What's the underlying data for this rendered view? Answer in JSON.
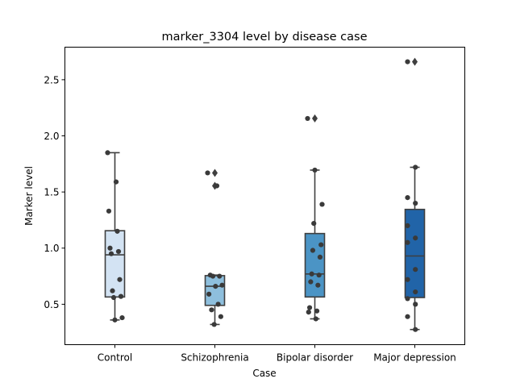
{
  "chart_data": {
    "type": "box",
    "title": "marker_3304 level by disease case",
    "xlabel": "Case",
    "ylabel": "Marker level",
    "ylim": [
      0.14,
      2.79
    ],
    "yticks": [
      0.5,
      1.0,
      1.5,
      2.0,
      2.5
    ],
    "ytick_labels": [
      "0.5",
      "1.0",
      "1.5",
      "2.0",
      "2.5"
    ],
    "categories": [
      "Control",
      "Schizophrenia",
      "Bipolar disorder",
      "Major depression"
    ],
    "colors": [
      "#d3e3f3",
      "#8ebfdd",
      "#4b94c5",
      "#2164a8"
    ],
    "boxes": [
      {
        "q1": 0.565,
        "median": 0.94,
        "q3": 1.155,
        "whislo": 0.36,
        "whishi": 1.85,
        "fliers": []
      },
      {
        "q1": 0.49,
        "median": 0.66,
        "q3": 0.755,
        "whislo": 0.32,
        "whishi": 0.76,
        "fliers": [
          1.555,
          1.67
        ]
      },
      {
        "q1": 0.565,
        "median": 0.77,
        "q3": 1.13,
        "whislo": 0.37,
        "whishi": 1.695,
        "fliers": [
          2.155
        ]
      },
      {
        "q1": 0.56,
        "median": 0.93,
        "q3": 1.345,
        "whislo": 0.275,
        "whishi": 1.72,
        "fliers": [
          2.66
        ]
      }
    ],
    "points": [
      [
        1.85,
        1.59,
        1.33,
        1.15,
        1.0,
        0.97,
        0.95,
        0.72,
        0.62,
        0.57,
        0.56,
        0.38,
        0.36
      ],
      [
        1.67,
        1.555,
        0.76,
        0.75,
        0.75,
        0.67,
        0.66,
        0.59,
        0.5,
        0.45,
        0.39,
        0.32
      ],
      [
        2.155,
        1.695,
        1.39,
        1.22,
        1.03,
        0.98,
        0.92,
        0.77,
        0.76,
        0.7,
        0.67,
        0.47,
        0.44,
        0.43,
        0.37
      ],
      [
        2.66,
        1.72,
        1.45,
        1.4,
        1.2,
        1.09,
        1.05,
        0.81,
        0.72,
        0.61,
        0.55,
        0.5,
        0.39,
        0.275
      ]
    ]
  }
}
